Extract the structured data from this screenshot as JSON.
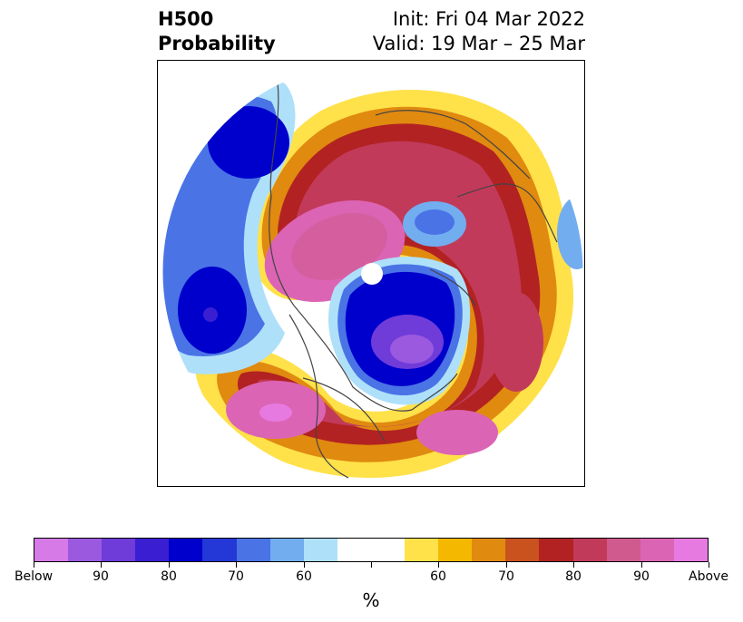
{
  "title": {
    "left_line1": "H500",
    "left_line2": "Probability",
    "right_line1": "Init: Fri 04 Mar 2022",
    "right_line2": "Valid: 19 Mar – 25 Mar"
  },
  "colorbar": {
    "unit": "%",
    "colors": [
      "#d67ae8",
      "#9b59e0",
      "#6f3bd9",
      "#3a1ed2",
      "#0000cc",
      "#2338d6",
      "#4a73e6",
      "#72adf0",
      "#aee0fa",
      "#ffffff",
      "#ffffff",
      "#ffe14a",
      "#f5b800",
      "#e08a10",
      "#c9521e",
      "#b22222",
      "#c23a5a",
      "#d05a8e",
      "#dc64b4",
      "#e67ae0"
    ],
    "tick_labels": [
      "Below",
      "90",
      "80",
      "70",
      "60",
      "",
      "60",
      "70",
      "80",
      "90",
      "Above"
    ]
  },
  "map": {
    "projection": "north-polar-stereographic",
    "field": "H500 probability",
    "colors": {
      "below_deep": "#0000cc",
      "below_mid": "#4a73e6",
      "below_light": "#aee0fa",
      "below_max": "#9b59e0",
      "above_light": "#ffe14a",
      "above_mid": "#e08a10",
      "above_deep": "#b22222",
      "above_max": "#dc64b4",
      "coastline": "#444444"
    }
  }
}
